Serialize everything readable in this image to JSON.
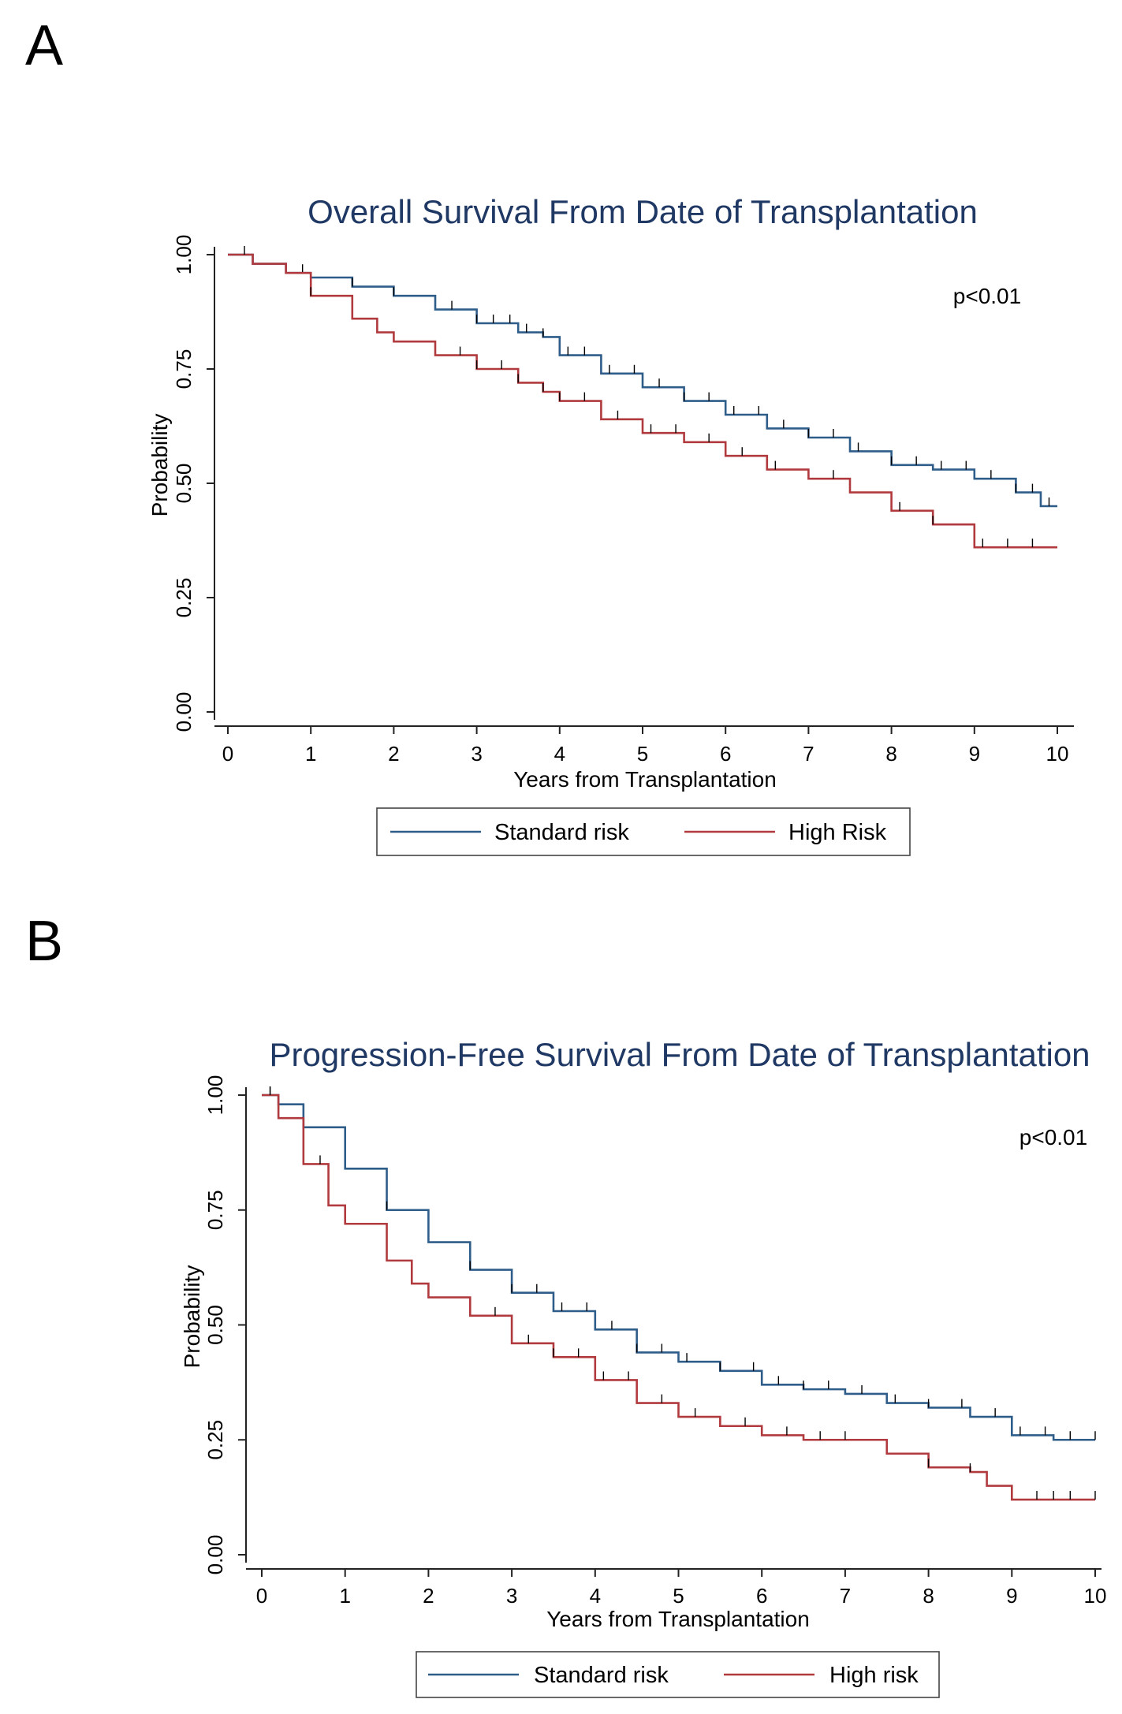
{
  "panels": {
    "a": {
      "letter": "A"
    },
    "b": {
      "letter": "B"
    }
  },
  "colors": {
    "standard": "#2f5d8a",
    "high": "#b03a3e",
    "title": "#1f3864"
  },
  "chart_data": [
    {
      "type": "line",
      "title": "Overall Survival From Date of Transplantation",
      "xlabel": "Years from Transplantation",
      "ylabel": "Probability",
      "xlim": [
        0,
        10
      ],
      "ylim": [
        0,
        1
      ],
      "xticks": [
        "0",
        "1",
        "2",
        "3",
        "4",
        "5",
        "6",
        "7",
        "8",
        "9",
        "10"
      ],
      "yticks": [
        "0.00",
        "0.25",
        "0.50",
        "0.75",
        "1.00"
      ],
      "annotation": "p<0.01",
      "legend_position": "bottom",
      "series": [
        {
          "name": "Standard risk",
          "color": "#2f5d8a",
          "x": [
            0,
            0.3,
            0.7,
            1.0,
            1.5,
            2.0,
            2.5,
            3.0,
            3.5,
            3.8,
            4.0,
            4.5,
            5.0,
            5.5,
            6.0,
            6.5,
            7.0,
            7.5,
            8.0,
            8.5,
            9.0,
            9.5,
            9.8,
            10.0
          ],
          "y": [
            1.0,
            0.98,
            0.96,
            0.95,
            0.93,
            0.91,
            0.88,
            0.85,
            0.83,
            0.82,
            0.78,
            0.74,
            0.71,
            0.68,
            0.65,
            0.62,
            0.6,
            0.57,
            0.54,
            0.53,
            0.51,
            0.48,
            0.45,
            0.45
          ],
          "censor_x": [
            0.9,
            1.5,
            2.0,
            2.7,
            3.0,
            3.2,
            3.4,
            3.6,
            3.8,
            4.1,
            4.3,
            4.6,
            4.9,
            5.2,
            5.5,
            5.8,
            6.1,
            6.4,
            6.7,
            7.0,
            7.3,
            7.6,
            8.0,
            8.3,
            8.6,
            8.9,
            9.2,
            9.5,
            9.7,
            9.9
          ]
        },
        {
          "name": "High Risk",
          "color": "#b03a3e",
          "x": [
            0,
            0.3,
            0.7,
            1.0,
            1.5,
            1.8,
            2.0,
            2.5,
            3.0,
            3.5,
            3.8,
            4.0,
            4.5,
            5.0,
            5.5,
            6.0,
            6.5,
            7.0,
            7.5,
            8.0,
            8.5,
            9.0,
            10.0
          ],
          "y": [
            1.0,
            0.98,
            0.96,
            0.91,
            0.86,
            0.83,
            0.81,
            0.78,
            0.75,
            0.72,
            0.7,
            0.68,
            0.64,
            0.61,
            0.59,
            0.56,
            0.53,
            0.51,
            0.48,
            0.44,
            0.41,
            0.36,
            0.36
          ],
          "censor_x": [
            0.2,
            1.0,
            2.8,
            3.0,
            3.3,
            3.5,
            3.8,
            4.0,
            4.3,
            4.7,
            5.1,
            5.4,
            5.8,
            6.2,
            6.6,
            7.3,
            8.1,
            8.5,
            9.1,
            9.4,
            9.7
          ]
        }
      ]
    },
    {
      "type": "line",
      "title": "Progression-Free Survival From Date of Transplantation",
      "xlabel": "Years from Transplantation",
      "ylabel": "Probability",
      "xlim": [
        0,
        10
      ],
      "ylim": [
        0,
        1
      ],
      "xticks": [
        "0",
        "1",
        "2",
        "3",
        "4",
        "5",
        "6",
        "7",
        "8",
        "9",
        "10"
      ],
      "yticks": [
        "0.00",
        "0.25",
        "0.50",
        "0.75",
        "1.00"
      ],
      "annotation": "p<0.01",
      "legend_position": "bottom",
      "series": [
        {
          "name": "Standard risk",
          "color": "#2f5d8a",
          "x": [
            0,
            0.2,
            0.5,
            1.0,
            1.5,
            2.0,
            2.5,
            3.0,
            3.5,
            4.0,
            4.5,
            5.0,
            5.5,
            6.0,
            6.5,
            7.0,
            7.5,
            8.0,
            8.5,
            9.0,
            9.5,
            10.0
          ],
          "y": [
            1.0,
            0.98,
            0.93,
            0.84,
            0.75,
            0.68,
            0.62,
            0.57,
            0.53,
            0.49,
            0.44,
            0.42,
            0.4,
            0.37,
            0.36,
            0.35,
            0.33,
            0.32,
            0.3,
            0.26,
            0.25,
            0.25
          ],
          "censor_x": [
            0.1,
            1.5,
            2.5,
            3.0,
            3.3,
            3.6,
            3.9,
            4.2,
            4.5,
            4.8,
            5.1,
            5.5,
            5.9,
            6.2,
            6.5,
            6.8,
            7.2,
            7.6,
            8.0,
            8.4,
            8.8,
            9.1,
            9.4,
            9.7,
            10.0
          ]
        },
        {
          "name": "High risk",
          "color": "#b03a3e",
          "x": [
            0,
            0.2,
            0.5,
            0.8,
            1.0,
            1.5,
            1.8,
            2.0,
            2.5,
            3.0,
            3.5,
            4.0,
            4.5,
            5.0,
            5.5,
            6.0,
            6.5,
            7.0,
            7.5,
            8.0,
            8.5,
            8.7,
            9.0,
            10.0
          ],
          "y": [
            1.0,
            0.95,
            0.85,
            0.76,
            0.72,
            0.64,
            0.59,
            0.56,
            0.52,
            0.46,
            0.43,
            0.38,
            0.33,
            0.3,
            0.28,
            0.26,
            0.25,
            0.25,
            0.22,
            0.19,
            0.18,
            0.15,
            0.12,
            0.12
          ],
          "censor_x": [
            0.1,
            0.7,
            2.8,
            3.2,
            3.5,
            3.8,
            4.1,
            4.4,
            4.8,
            5.2,
            5.8,
            6.3,
            6.7,
            7.0,
            8.0,
            8.5,
            9.3,
            9.5,
            9.7,
            10.0
          ]
        }
      ]
    }
  ]
}
